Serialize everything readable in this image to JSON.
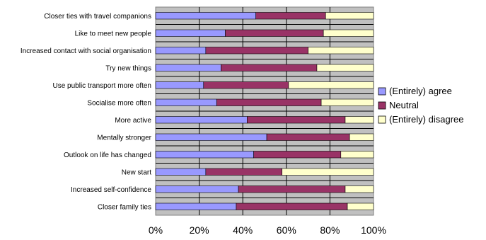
{
  "chart_data": {
    "type": "bar",
    "orientation": "horizontal",
    "stacked": "percent",
    "categories": [
      "Closer ties with travel companions",
      "Like to meet new people",
      "Increased contact with social organisation",
      "Try new things",
      "Use public transport more often",
      "Socialise more often",
      "More active",
      "Mentally stronger",
      "Outlook on life has changed",
      "New start",
      "Increased self-confidence",
      "Closer family ties"
    ],
    "series": [
      {
        "name": "(Entirely) agree",
        "color": "#9999ff",
        "values": [
          46,
          32,
          23,
          30,
          22,
          28,
          42,
          51,
          45,
          23,
          38,
          37
        ]
      },
      {
        "name": "Neutral",
        "color": "#993366",
        "values": [
          32,
          45,
          47,
          44,
          39,
          48,
          45,
          38,
          40,
          35,
          49,
          51
        ]
      },
      {
        "name": "(Entirely) disagree",
        "color": "#ffffcc",
        "values": [
          22,
          23,
          30,
          26,
          39,
          24,
          13,
          11,
          15,
          42,
          13,
          12
        ]
      }
    ],
    "xlim": [
      0,
      100
    ],
    "x_ticks": [
      "0%",
      "20%",
      "40%",
      "60%",
      "80%",
      "100%"
    ],
    "grid": true,
    "plot_background": "#c0c0c0",
    "legend_position": "right",
    "title": "",
    "xlabel": "",
    "ylabel": ""
  }
}
